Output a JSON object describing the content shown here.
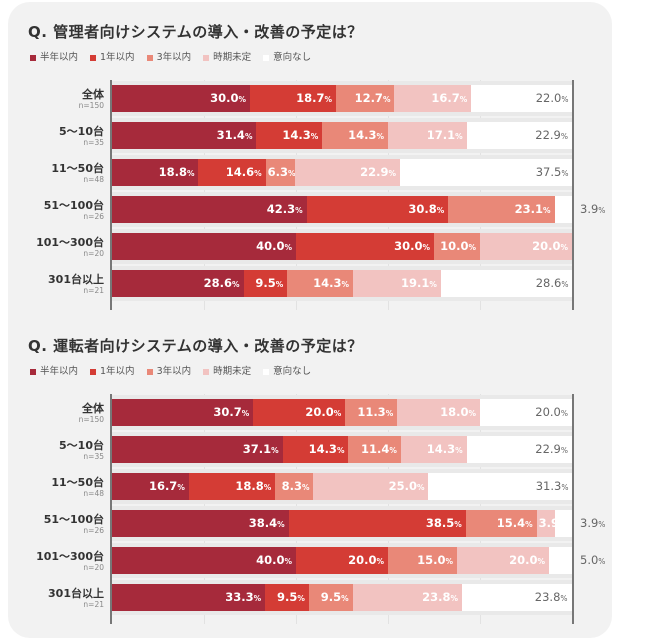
{
  "colors": [
    "#a62a3b",
    "#d43c35",
    "#e98878",
    "#f2c3c1",
    "#ffffff"
  ],
  "chart_data": [
    {
      "type": "bar",
      "stacked": true,
      "orientation": "horizontal",
      "title": "Q. 管理者向けシステムの導入・改善の予定は？",
      "legend": [
        "半年以内",
        "1年以内",
        "3年以内",
        "時期未定",
        "意向なし"
      ],
      "legend_position": "top-left",
      "categories": [
        "全体",
        "5〜10台",
        "11〜50台",
        "51〜100台",
        "101〜300台",
        "301台以上"
      ],
      "n": [
        "n=150",
        "n=35",
        "n=48",
        "n=26",
        "n=20",
        "n=21"
      ],
      "values": [
        [
          30.0,
          18.7,
          12.7,
          16.7,
          22.0
        ],
        [
          31.4,
          14.3,
          14.3,
          17.1,
          22.9
        ],
        [
          18.8,
          14.6,
          6.3,
          22.9,
          37.5
        ],
        [
          42.3,
          30.8,
          23.1,
          0,
          3.9
        ],
        [
          40.0,
          30.0,
          10.0,
          20.0,
          0
        ],
        [
          28.6,
          9.5,
          14.3,
          19.1,
          28.6
        ]
      ],
      "unit": "%",
      "xlim": [
        0,
        100
      ]
    },
    {
      "type": "bar",
      "stacked": true,
      "orientation": "horizontal",
      "title": "Q. 運転者向けシステムの導入・改善の予定は？",
      "legend": [
        "半年以内",
        "1年以内",
        "3年以内",
        "時期未定",
        "意向なし"
      ],
      "legend_position": "top-left",
      "categories": [
        "全体",
        "5〜10台",
        "11〜50台",
        "51〜100台",
        "101〜300台",
        "301台以上"
      ],
      "n": [
        "n=150",
        "n=35",
        "n=48",
        "n=26",
        "n=20",
        "n=21"
      ],
      "values": [
        [
          30.7,
          20.0,
          11.3,
          18.0,
          20.0
        ],
        [
          37.1,
          14.3,
          11.4,
          14.3,
          22.9
        ],
        [
          16.7,
          18.8,
          8.3,
          25.0,
          31.3
        ],
        [
          38.4,
          38.5,
          15.4,
          3.9,
          3.9
        ],
        [
          40.0,
          20.0,
          15.0,
          20.0,
          5.0
        ],
        [
          33.3,
          9.5,
          9.5,
          23.8,
          23.8
        ]
      ],
      "unit": "%",
      "xlim": [
        0,
        100
      ]
    }
  ]
}
